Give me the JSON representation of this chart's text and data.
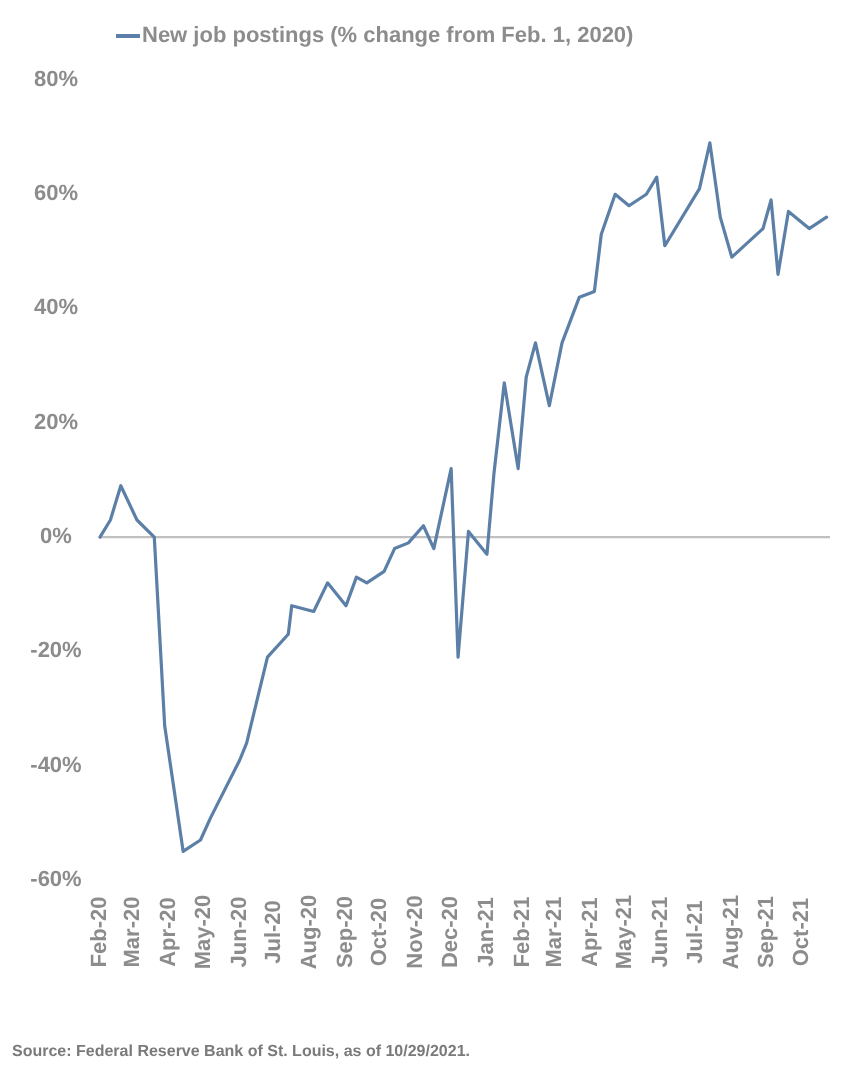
{
  "chart_data": {
    "type": "line",
    "x": [
      "2020-02-01",
      "2020-02-10",
      "2020-02-19",
      "2020-03-04",
      "2020-03-19",
      "2020-03-28",
      "2020-04-13",
      "2020-04-28",
      "2020-05-07",
      "2020-06-01",
      "2020-06-07",
      "2020-06-25",
      "2020-07-13",
      "2020-07-16",
      "2020-08-04",
      "2020-08-16",
      "2020-09-01",
      "2020-09-10",
      "2020-09-19",
      "2020-10-04",
      "2020-10-13",
      "2020-10-25",
      "2020-11-07",
      "2020-11-16",
      "2020-12-01",
      "2020-12-07",
      "2020-12-16",
      "2021-01-01",
      "2021-01-07",
      "2021-01-16",
      "2021-01-28",
      "2021-02-04",
      "2021-02-12",
      "2021-02-24",
      "2021-03-07",
      "2021-03-22",
      "2021-04-04",
      "2021-04-10",
      "2021-04-22",
      "2021-05-04",
      "2021-05-19",
      "2021-05-28",
      "2021-06-04",
      "2021-07-04",
      "2021-07-13",
      "2021-07-22",
      "2021-08-01",
      "2021-08-28",
      "2021-09-04",
      "2021-09-10",
      "2021-09-19",
      "2021-10-07",
      "2021-10-22"
    ],
    "series": [
      {
        "name": "New job postings (% change from Feb. 1, 2020)",
        "color": "#5b7fa6",
        "values": [
          0,
          3,
          9,
          3,
          0,
          -33,
          -55,
          -53,
          -49,
          -39,
          -36,
          -21,
          -17,
          -12,
          -13,
          -8,
          -12,
          -7,
          -8,
          -6,
          -2,
          -1,
          2,
          -2,
          12,
          -21,
          1,
          -3,
          11,
          27,
          12,
          28,
          34,
          23,
          34,
          42,
          43,
          53,
          60,
          58,
          60,
          63,
          51,
          61,
          69,
          56,
          49,
          54,
          59,
          46,
          57,
          54,
          56
        ]
      }
    ],
    "xlim": [
      "2020-02-01",
      "2021-10-25"
    ],
    "xticks": [
      {
        "value": "2020-02-01",
        "label": "Feb-20"
      },
      {
        "value": "2020-03-01",
        "label": "Mar-20"
      },
      {
        "value": "2020-04-01",
        "label": "Apr-20"
      },
      {
        "value": "2020-05-01",
        "label": "May-20"
      },
      {
        "value": "2020-06-01",
        "label": "Jun-20"
      },
      {
        "value": "2020-07-01",
        "label": "Jul-20"
      },
      {
        "value": "2020-08-01",
        "label": "Aug-20"
      },
      {
        "value": "2020-09-01",
        "label": "Sep-20"
      },
      {
        "value": "2020-10-01",
        "label": "Oct-20"
      },
      {
        "value": "2020-11-01",
        "label": "Nov-20"
      },
      {
        "value": "2020-12-01",
        "label": "Dec-20"
      },
      {
        "value": "2021-01-01",
        "label": "Jan-21"
      },
      {
        "value": "2021-02-01",
        "label": "Feb-21"
      },
      {
        "value": "2021-03-01",
        "label": "Mar-21"
      },
      {
        "value": "2021-04-01",
        "label": "Apr-21"
      },
      {
        "value": "2021-05-01",
        "label": "May-21"
      },
      {
        "value": "2021-06-01",
        "label": "Jun-21"
      },
      {
        "value": "2021-07-01",
        "label": "Jul-21"
      },
      {
        "value": "2021-08-01",
        "label": "Aug-21"
      },
      {
        "value": "2021-09-01",
        "label": "Sep-21"
      },
      {
        "value": "2021-10-01",
        "label": "Oct-21"
      }
    ],
    "ylim": [
      -60,
      80
    ],
    "yticks": [
      {
        "value": -60,
        "label": "-60%"
      },
      {
        "value": -40,
        "label": "-40%"
      },
      {
        "value": -20,
        "label": "-20%"
      },
      {
        "value": 0,
        "label": "0%"
      },
      {
        "value": 20,
        "label": "20%"
      },
      {
        "value": 40,
        "label": "40%"
      },
      {
        "value": 60,
        "label": "60%"
      },
      {
        "value": 80,
        "label": "80%"
      }
    ],
    "legend": "top",
    "annotations": [
      "Source: Federal Reserve Bank of St. Louis, as of 10/29/2021."
    ]
  }
}
